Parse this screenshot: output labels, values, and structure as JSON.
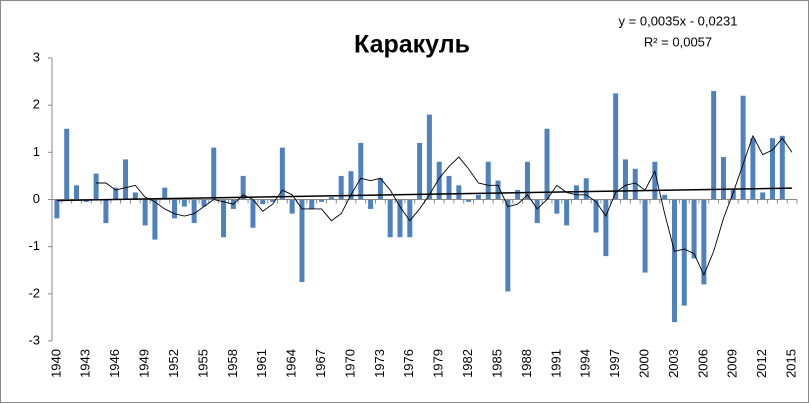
{
  "chart_data": {
    "type": "bar",
    "title": "Каракуль",
    "equation": "y = 0,0035x - 0,0231",
    "r_squared": "R² = 0,0057",
    "categories": [
      "1940",
      null,
      null,
      "1943",
      null,
      null,
      "1946",
      null,
      null,
      "1949",
      null,
      null,
      "1952",
      null,
      null,
      "1955",
      null,
      null,
      "1958",
      null,
      null,
      "1961",
      null,
      null,
      "1964",
      null,
      null,
      "1967",
      null,
      null,
      "1970",
      null,
      null,
      "1973",
      null,
      null,
      "1976",
      null,
      null,
      "1979",
      null,
      null,
      "1982",
      null,
      null,
      "1985",
      null,
      null,
      "1988",
      null,
      null,
      "1991",
      null,
      null,
      "1994",
      null,
      null,
      "1997",
      null,
      null,
      "2000",
      null,
      null,
      "2003",
      null,
      null,
      "2006",
      null,
      null,
      "2009",
      null,
      null,
      "2012",
      null,
      null,
      "2015"
    ],
    "values": [
      -0.4,
      1.5,
      0.3,
      -0.05,
      0.55,
      -0.5,
      0.25,
      0.85,
      0.15,
      -0.55,
      -0.85,
      0.25,
      -0.4,
      -0.15,
      -0.5,
      -0.15,
      1.1,
      -0.8,
      -0.2,
      0.5,
      -0.6,
      -0.1,
      -0.05,
      1.1,
      -0.3,
      -1.75,
      -0.2,
      -0.05,
      0.05,
      0.5,
      0.6,
      1.2,
      -0.2,
      0.45,
      -0.8,
      -0.8,
      -0.8,
      1.2,
      1.8,
      0.8,
      0.5,
      0.3,
      -0.05,
      0.1,
      0.8,
      0.4,
      -1.95,
      0.2,
      0.8,
      -0.5,
      1.5,
      -0.3,
      -0.55,
      0.3,
      0.45,
      -0.7,
      -1.2,
      2.25,
      0.85,
      0.65,
      -1.55,
      0.8,
      0.1,
      -2.6,
      -2.25,
      -1.25,
      -1.8,
      2.3,
      0.9,
      0.2,
      2.2,
      1.3,
      0.15,
      1.3,
      1.35,
      null
    ],
    "color": "#4f81bd",
    "line": {
      "color": "#000000",
      "values": [
        null,
        null,
        null,
        null,
        0.35,
        0.35,
        0.2,
        0.25,
        0.3,
        0.05,
        -0.05,
        -0.2,
        -0.3,
        -0.35,
        -0.3,
        -0.15,
        0.0,
        -0.05,
        -0.1,
        0.1,
        0.0,
        -0.25,
        -0.1,
        0.2,
        0.1,
        -0.2,
        -0.2,
        -0.2,
        -0.45,
        -0.3,
        0.1,
        0.45,
        0.4,
        0.45,
        0.2,
        -0.15,
        -0.45,
        -0.2,
        0.1,
        0.45,
        0.7,
        0.9,
        0.65,
        0.35,
        0.3,
        0.3,
        -0.15,
        -0.1,
        0.1,
        -0.2,
        0.0,
        0.3,
        0.15,
        0.1,
        0.1,
        -0.05,
        -0.35,
        0.15,
        0.3,
        0.35,
        0.2,
        0.6,
        -0.3,
        -1.1,
        -1.05,
        -1.15,
        -1.6,
        -1.1,
        -0.4,
        0.15,
        0.75,
        1.35,
        0.95,
        1.05,
        1.3,
        1.0
      ]
    },
    "trend": {
      "color": "#000000",
      "x": [
        "1940",
        "2015"
      ],
      "values": [
        -0.02,
        0.24
      ]
    },
    "ylim": [
      -3,
      3
    ],
    "yticks": [
      3,
      2,
      1,
      0,
      -1,
      -2,
      -3
    ],
    "grid": false
  }
}
